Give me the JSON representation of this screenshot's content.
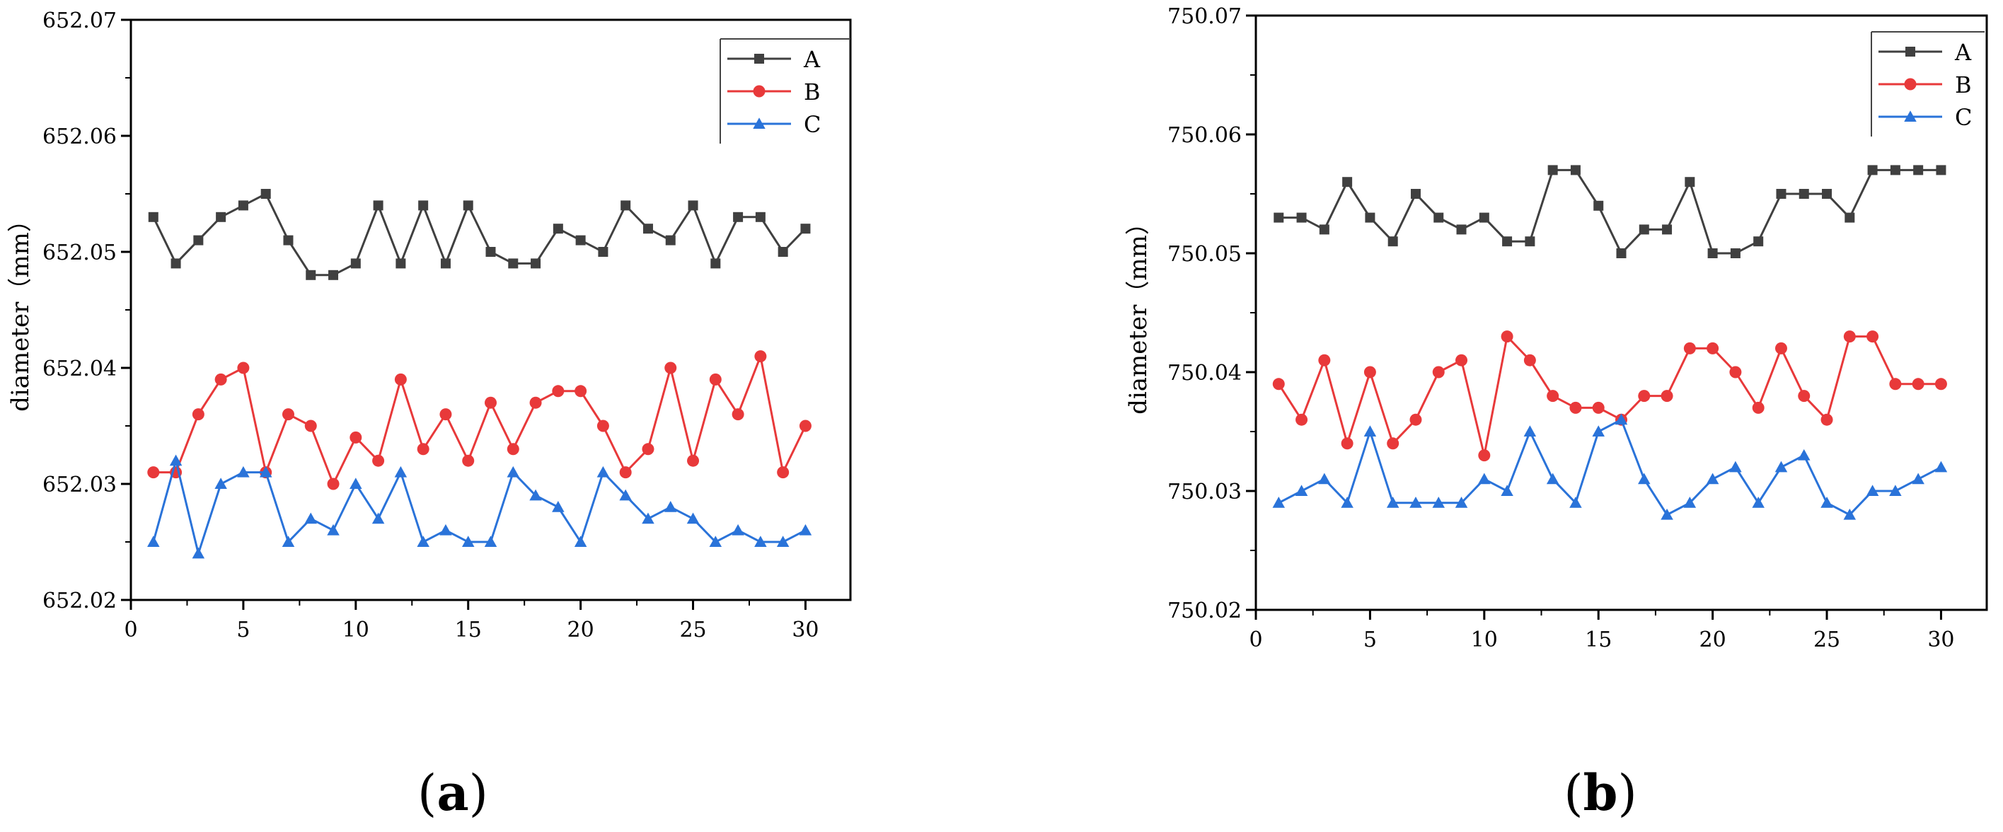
{
  "chart_data": [
    {
      "type": "line",
      "panel_label": "(a)",
      "panel_letter": "a",
      "ylabel": "diameter（mm）",
      "xlabel": "",
      "xlim": [
        0,
        32
      ],
      "ylim": [
        652.02,
        652.07
      ],
      "x_ticks": [
        0,
        5,
        10,
        15,
        20,
        25,
        30
      ],
      "x_tick_labels": [
        "0",
        "5",
        "10",
        "15",
        "20",
        "25",
        "30"
      ],
      "y_ticks": [
        652.02,
        652.03,
        652.04,
        652.05,
        652.06,
        652.07
      ],
      "y_tick_labels": [
        "652.02",
        "652.03",
        "652.04",
        "652.05",
        "652.06",
        "652.07"
      ],
      "grid": false,
      "legend_position": "top-right",
      "x": [
        1,
        2,
        3,
        4,
        5,
        6,
        7,
        8,
        9,
        10,
        11,
        12,
        13,
        14,
        15,
        16,
        17,
        18,
        19,
        20,
        21,
        22,
        23,
        24,
        25,
        26,
        27,
        28,
        29,
        30
      ],
      "series": [
        {
          "name": "A",
          "color": "#404040",
          "marker": "square",
          "values": [
            652.053,
            652.049,
            652.051,
            652.053,
            652.054,
            652.055,
            652.051,
            652.048,
            652.048,
            652.049,
            652.054,
            652.049,
            652.054,
            652.049,
            652.054,
            652.05,
            652.049,
            652.049,
            652.052,
            652.051,
            652.05,
            652.054,
            652.052,
            652.051,
            652.054,
            652.049,
            652.053,
            652.053,
            652.05,
            652.052
          ]
        },
        {
          "name": "B",
          "color": "#e8393a",
          "marker": "circle",
          "values": [
            652.031,
            652.031,
            652.036,
            652.039,
            652.04,
            652.031,
            652.036,
            652.035,
            652.03,
            652.034,
            652.032,
            652.039,
            652.033,
            652.036,
            652.032,
            652.037,
            652.033,
            652.037,
            652.038,
            652.038,
            652.035,
            652.031,
            652.033,
            652.04,
            652.032,
            652.039,
            652.036,
            652.041,
            652.031,
            652.035
          ]
        },
        {
          "name": "C",
          "color": "#2a73d9",
          "marker": "triangle",
          "values": [
            652.025,
            652.032,
            652.024,
            652.03,
            652.031,
            652.031,
            652.025,
            652.027,
            652.026,
            652.03,
            652.027,
            652.031,
            652.025,
            652.026,
            652.025,
            652.025,
            652.031,
            652.029,
            652.028,
            652.025,
            652.031,
            652.029,
            652.027,
            652.028,
            652.027,
            652.025,
            652.026,
            652.025,
            652.025,
            652.026
          ]
        }
      ]
    },
    {
      "type": "line",
      "panel_label": "(b)",
      "panel_letter": "b",
      "ylabel": "diameter（mm）",
      "xlabel": "",
      "xlim": [
        0,
        32
      ],
      "ylim": [
        750.02,
        750.07
      ],
      "x_ticks": [
        0,
        5,
        10,
        15,
        20,
        25,
        30
      ],
      "x_tick_labels": [
        "0",
        "5",
        "10",
        "15",
        "20",
        "25",
        "30"
      ],
      "y_ticks": [
        750.02,
        750.03,
        750.04,
        750.05,
        750.06,
        750.07
      ],
      "y_tick_labels": [
        "750.02",
        "750.03",
        "750.04",
        "750.05",
        "750.06",
        "750.07"
      ],
      "grid": false,
      "legend_position": "top-right",
      "x": [
        1,
        2,
        3,
        4,
        5,
        6,
        7,
        8,
        9,
        10,
        11,
        12,
        13,
        14,
        15,
        16,
        17,
        18,
        19,
        20,
        21,
        22,
        23,
        24,
        25,
        26,
        27,
        28,
        29,
        30
      ],
      "series": [
        {
          "name": "A",
          "color": "#404040",
          "marker": "square",
          "values": [
            750.053,
            750.053,
            750.052,
            750.056,
            750.053,
            750.051,
            750.055,
            750.053,
            750.052,
            750.053,
            750.051,
            750.051,
            750.057,
            750.057,
            750.054,
            750.05,
            750.052,
            750.052,
            750.056,
            750.05,
            750.05,
            750.051,
            750.055,
            750.055,
            750.055,
            750.053,
            750.057,
            750.057,
            750.057,
            750.057
          ]
        },
        {
          "name": "B",
          "color": "#e8393a",
          "marker": "circle",
          "values": [
            750.039,
            750.036,
            750.041,
            750.034,
            750.04,
            750.034,
            750.036,
            750.04,
            750.041,
            750.033,
            750.043,
            750.041,
            750.038,
            750.037,
            750.037,
            750.036,
            750.038,
            750.038,
            750.042,
            750.042,
            750.04,
            750.037,
            750.042,
            750.038,
            750.036,
            750.043,
            750.043,
            750.039,
            750.039,
            750.039
          ]
        },
        {
          "name": "C",
          "color": "#2a73d9",
          "marker": "triangle",
          "values": [
            750.029,
            750.03,
            750.031,
            750.029,
            750.035,
            750.029,
            750.029,
            750.029,
            750.029,
            750.031,
            750.03,
            750.035,
            750.031,
            750.029,
            750.035,
            750.036,
            750.031,
            750.028,
            750.029,
            750.031,
            750.032,
            750.029,
            750.032,
            750.033,
            750.029,
            750.028,
            750.03,
            750.03,
            750.031,
            750.032
          ]
        }
      ]
    }
  ]
}
